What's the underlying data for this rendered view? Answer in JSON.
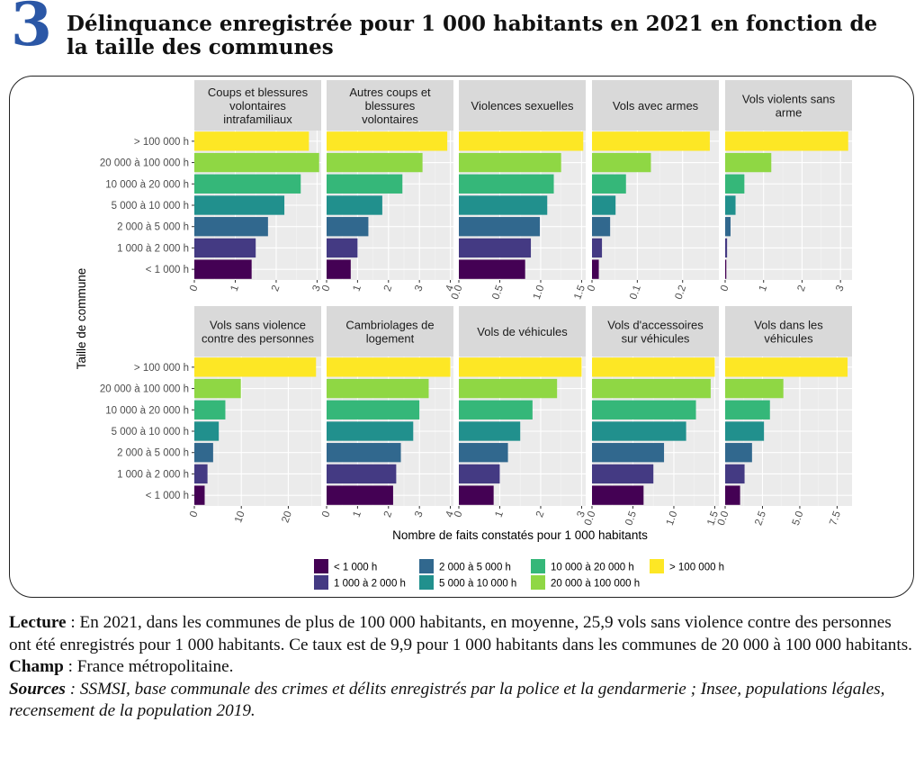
{
  "figure": {
    "number": "3",
    "title": "Délinquance enregistrée pour 1 000 habitants en 2021 en fonction de la taille des communes"
  },
  "notes": {
    "lecture_label": "Lecture",
    "lecture_text": " : En 2021, dans les communes de plus de 100 000 habitants, en moyenne, 25,9 vols sans violence contre des personnes ont été enregistrés pour 1 000 habitants. Ce taux est de 9,9 pour 1 000 habitants dans les communes de 20 000 à 100 000 habitants.",
    "champ_label": "Champ",
    "champ_text": " : France métropolitaine.",
    "sources_label": "Sources",
    "sources_text": " : SSMSI, base communale des crimes et délits enregistrés par la police et la gendarmerie ; Insee, populations légales, recensement de la population 2019."
  },
  "chart_data": {
    "type": "bar",
    "orientation": "horizontal",
    "ylabel": "Taille de commune",
    "xlabel": "Nombre de faits constatés pour 1 000 habitants",
    "categories": [
      "> 100 000 h",
      "20 000 à 100 000 h",
      "10 000 à 20 000 h",
      "5 000 à 10 000 h",
      "2 000 à 5 000 h",
      "1 000 à 2 000 h",
      "< 1 000 h"
    ],
    "colors": [
      "#fde725",
      "#8fd744",
      "#35b779",
      "#21908d",
      "#31688e",
      "#443a83",
      "#440154"
    ],
    "legend": {
      "placement": "bottom",
      "items": [
        {
          "label": "< 1 000 h",
          "color": "#440154"
        },
        {
          "label": "1 000 à 2 000 h",
          "color": "#443a83"
        },
        {
          "label": "2 000 à 5 000 h",
          "color": "#31688e"
        },
        {
          "label": "5 000 à 10 000 h",
          "color": "#21908d"
        },
        {
          "label": "10 000 à 20 000 h",
          "color": "#35b779"
        },
        {
          "label": "20 000 à 100 000 h",
          "color": "#8fd744"
        },
        {
          "label": "> 100 000 h",
          "color": "#fde725"
        }
      ]
    },
    "grid": true,
    "panels": [
      {
        "title": "Coups et blessures volontaires intrafamiliaux",
        "xlim": [
          0,
          3.1
        ],
        "ticks": [
          0,
          1,
          2,
          3
        ],
        "tick_labels": [
          "0",
          "1",
          "2",
          "3"
        ],
        "values": [
          2.8,
          3.05,
          2.6,
          2.2,
          1.8,
          1.5,
          1.4
        ]
      },
      {
        "title": "Autres coups et blessures volontaires",
        "xlim": [
          0,
          4.1
        ],
        "ticks": [
          0,
          1,
          2,
          3,
          4
        ],
        "tick_labels": [
          "0",
          "1",
          "2",
          "3",
          "4"
        ],
        "values": [
          3.9,
          3.1,
          2.45,
          1.8,
          1.35,
          1.0,
          0.78
        ]
      },
      {
        "title": "Violences sexuelles",
        "xlim": [
          0,
          1.55
        ],
        "ticks": [
          0,
          0.5,
          1.0,
          1.5
        ],
        "tick_labels": [
          "0.0",
          "0.5",
          "1.0",
          "1.5"
        ],
        "values": [
          1.52,
          1.25,
          1.16,
          1.08,
          0.99,
          0.88,
          0.81
        ]
      },
      {
        "title": "Vols avec armes",
        "xlim": [
          0,
          0.28
        ],
        "ticks": [
          0,
          0.1,
          0.2
        ],
        "tick_labels": [
          "0",
          "0.1",
          "0.2"
        ],
        "values": [
          0.26,
          0.13,
          0.075,
          0.052,
          0.04,
          0.022,
          0.015
        ]
      },
      {
        "title": "Vols violents sans arme",
        "xlim": [
          0,
          3.3
        ],
        "ticks": [
          0,
          1,
          2,
          3
        ],
        "tick_labels": [
          "0",
          "1",
          "2",
          "3"
        ],
        "values": [
          3.2,
          1.2,
          0.5,
          0.27,
          0.14,
          0.05,
          0.03
        ]
      },
      {
        "title": "Vols sans violence contre des personnes",
        "xlim": [
          0,
          27
        ],
        "ticks": [
          0,
          10,
          20
        ],
        "tick_labels": [
          "0",
          "10",
          "20"
        ],
        "values": [
          25.9,
          9.9,
          6.6,
          5.2,
          4.0,
          2.8,
          2.2
        ]
      },
      {
        "title": "Cambriolages de logement",
        "xlim": [
          0,
          4.1
        ],
        "ticks": [
          0,
          1,
          2,
          3,
          4
        ],
        "tick_labels": [
          "0",
          "1",
          "2",
          "3",
          "4"
        ],
        "values": [
          4.0,
          3.3,
          3.0,
          2.8,
          2.4,
          2.25,
          2.15
        ]
      },
      {
        "title": "Vols de véhicules",
        "xlim": [
          0,
          3.1
        ],
        "ticks": [
          0,
          1,
          2,
          3
        ],
        "tick_labels": [
          "0",
          "1",
          "2",
          "3"
        ],
        "values": [
          3.0,
          2.4,
          1.8,
          1.5,
          1.2,
          1.0,
          0.85
        ]
      },
      {
        "title": "Vols d'accessoires sur véhicules",
        "xlim": [
          0,
          1.55
        ],
        "ticks": [
          0,
          0.5,
          1.0,
          1.5
        ],
        "tick_labels": [
          "0.0",
          "0.5",
          "1.0",
          "1.5"
        ],
        "values": [
          1.5,
          1.45,
          1.27,
          1.15,
          0.88,
          0.75,
          0.63
        ]
      },
      {
        "title": "Vols dans les véhicules",
        "xlim": [
          0,
          8.5
        ],
        "ticks": [
          0,
          2.5,
          5.0,
          7.5
        ],
        "tick_labels": [
          "0.0",
          "2.5",
          "5.0",
          "7.5"
        ],
        "values": [
          8.2,
          3.9,
          3.0,
          2.6,
          1.8,
          1.3,
          1.0
        ]
      }
    ]
  }
}
